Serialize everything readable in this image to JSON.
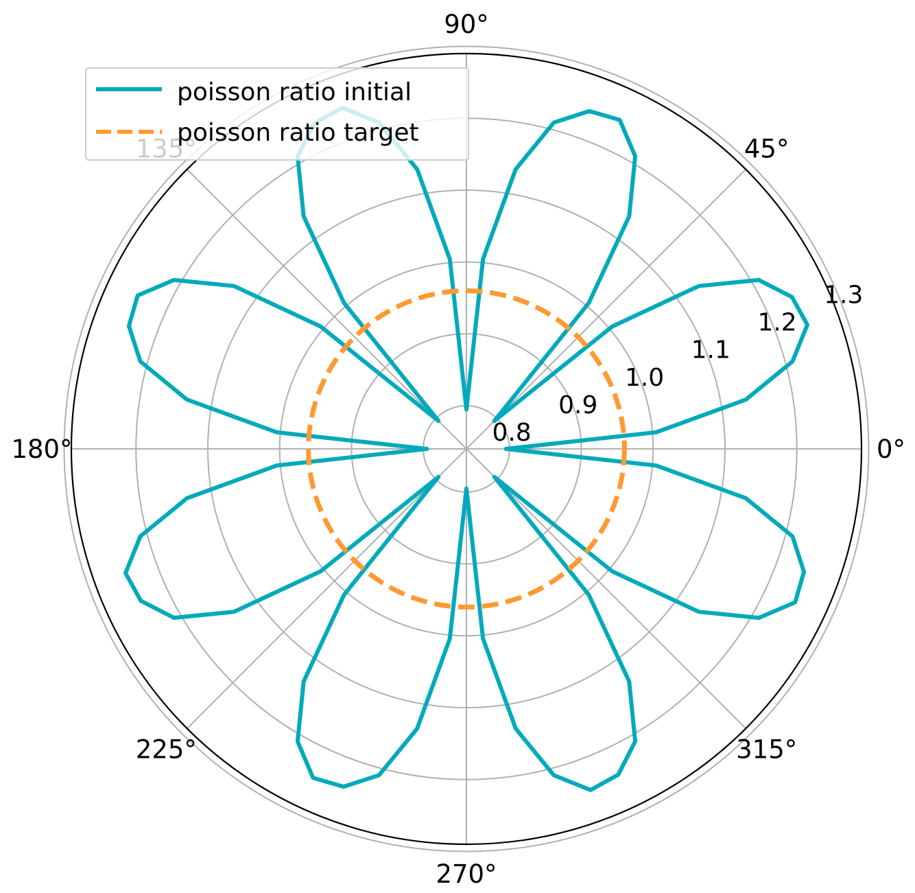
{
  "chart_data": {
    "type": "polar-line",
    "title": "",
    "angle_unit": "degrees",
    "angular_tick_labels": [
      "0°",
      "45°",
      "90°",
      "135°",
      "180°",
      "225°",
      "270°",
      "315°"
    ],
    "angular_ticks": [
      0,
      45,
      90,
      135,
      180,
      225,
      270,
      315
    ],
    "radial_ticks": [
      0.8,
      0.9,
      1.0,
      1.1,
      1.2,
      1.3
    ],
    "radial_tick_labels": [
      "0.8",
      "0.9",
      "1.0",
      "1.1",
      "1.2",
      "1.3"
    ],
    "rlim": [
      0.74,
      1.29
    ],
    "grid": true,
    "legend_position": "upper-left",
    "series": [
      {
        "name": "poisson ratio initial",
        "color": "#00aabb",
        "line_style": "solid",
        "theta": [
          0,
          5,
          10,
          15,
          20,
          25,
          30,
          35,
          40,
          45,
          50,
          55,
          60,
          65,
          70,
          75,
          80,
          85,
          90,
          95,
          100,
          105,
          110,
          115,
          120,
          125,
          130,
          135,
          140,
          145,
          150,
          155,
          160,
          165,
          170,
          175,
          180,
          185,
          190,
          195,
          200,
          205,
          210,
          215,
          220,
          225,
          230,
          235,
          240,
          245,
          250,
          255,
          260,
          265,
          270,
          275,
          280,
          285,
          290,
          295,
          300,
          305,
          310,
          315,
          320,
          325,
          330,
          335,
          340,
          345,
          350,
          355,
          360
        ],
        "r": [
          0.795,
          1.005,
          1.135,
          1.21,
          1.245,
          1.24,
          1.21,
          1.135,
          1.005,
          0.795,
          1.005,
          1.135,
          1.21,
          1.245,
          1.24,
          1.21,
          1.135,
          1.005,
          0.795,
          1.005,
          1.135,
          1.21,
          1.245,
          1.24,
          1.21,
          1.135,
          1.005,
          0.795,
          1.005,
          1.135,
          1.21,
          1.245,
          1.24,
          1.21,
          1.135,
          1.005,
          0.795,
          1.005,
          1.135,
          1.21,
          1.245,
          1.24,
          1.21,
          1.135,
          1.005,
          0.795,
          1.005,
          1.135,
          1.21,
          1.245,
          1.24,
          1.21,
          1.135,
          1.005,
          0.795,
          1.005,
          1.135,
          1.21,
          1.245,
          1.24,
          1.21,
          1.135,
          1.005,
          0.795,
          1.005,
          1.135,
          1.21,
          1.245,
          1.24,
          1.21,
          1.135,
          1.005,
          0.795
        ]
      },
      {
        "name": "poisson ratio target",
        "color": "#ff9933",
        "line_style": "dashed",
        "theta": [
          0,
          360
        ],
        "r": [
          0.96,
          0.96
        ]
      }
    ]
  }
}
